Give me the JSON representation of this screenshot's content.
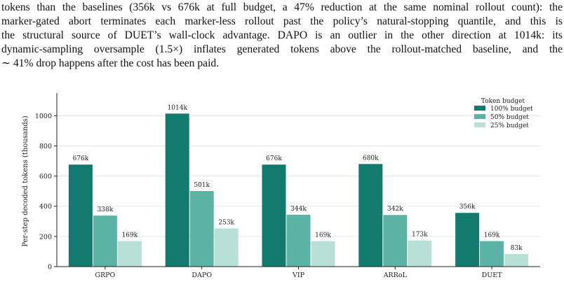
{
  "paragraph": {
    "lines": [
      "tokens than the baselines (356k vs 676k at full budget, a 47% reduction at the same nominal rollout count): the",
      "marker-gated abort terminates each marker-less rollout past the policy’s natural-stopping quantile, and this is",
      "the structural source of DUET’s wall-clock advantage. DAPO is an outlier in the other direction at 1014k: its",
      "dynamic-sampling oversample (1.5×) inflates generated tokens above the rollout-matched baseline, and the",
      "∼ 41% drop happens after the cost has been paid."
    ]
  },
  "chart_data": {
    "type": "bar",
    "title": "",
    "xlabel": "",
    "ylabel": "Per-step decoded tokens (thousands)",
    "ylim": [
      0,
      1150
    ],
    "yticks": [
      0,
      200,
      400,
      600,
      800,
      1000
    ],
    "grid": true,
    "legend": {
      "title": "Token budget",
      "placement": "top-right"
    },
    "categories": [
      "GRPO",
      "DAPO",
      "VIP",
      "ARRoL",
      "DUET"
    ],
    "series": [
      {
        "name": "100% budget",
        "color": "#127a6e",
        "values": [
          676,
          1014,
          676,
          680,
          356
        ],
        "labels": [
          "676k",
          "1014k",
          "676k",
          "680k",
          "356k"
        ]
      },
      {
        "name": "50% budget",
        "color": "#5bb3a6",
        "values": [
          338,
          501,
          344,
          342,
          169
        ],
        "labels": [
          "338k",
          "501k",
          "344k",
          "342k",
          "169k"
        ]
      },
      {
        "name": "25% budget",
        "color": "#b9e0d7",
        "values": [
          169,
          253,
          169,
          173,
          83
        ],
        "labels": [
          "169k",
          "253k",
          "169k",
          "173k",
          "83k"
        ]
      }
    ]
  }
}
